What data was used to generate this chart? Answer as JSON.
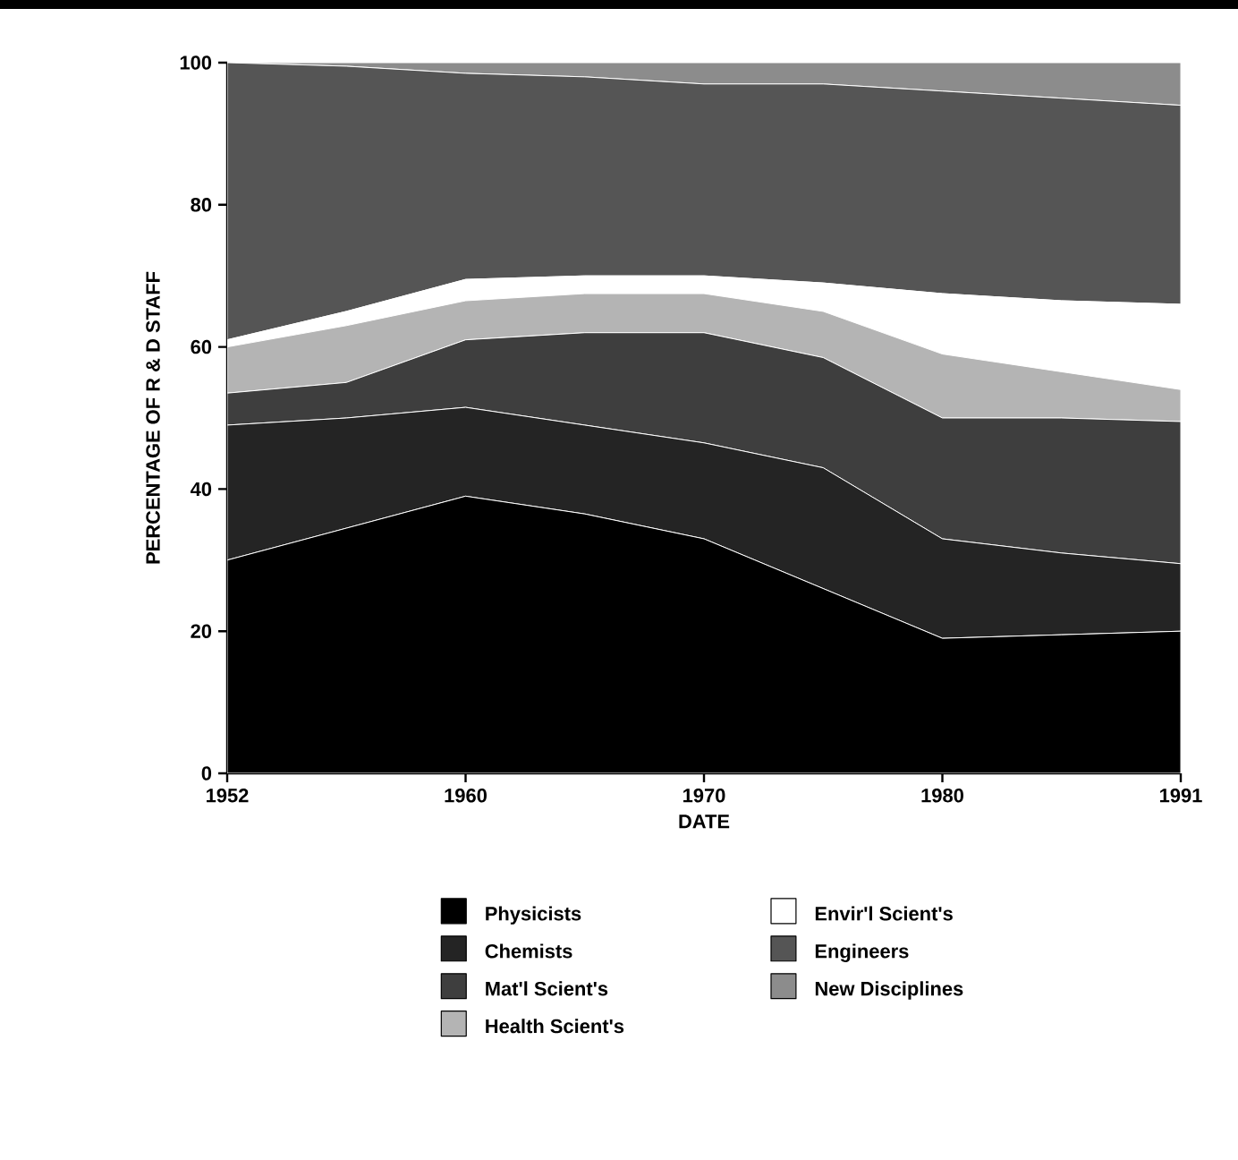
{
  "chart_data": {
    "type": "area",
    "stacked": true,
    "xlabel": "DATE",
    "ylabel": "PERCENTAGE OF R & D STAFF",
    "categories": [
      "1952",
      null,
      "1960",
      null,
      "1970",
      null,
      "1980",
      null,
      "1991"
    ],
    "ylim": [
      0,
      100
    ],
    "yticks": [
      0,
      20,
      40,
      60,
      80,
      100
    ],
    "grid": false,
    "legend": "bottom",
    "series": [
      {
        "name": "Physicists",
        "color": "#000000",
        "values": [
          30,
          34.5,
          39,
          36.5,
          33,
          26,
          19,
          19.5,
          20
        ]
      },
      {
        "name": "Chemists",
        "color": "#242424",
        "values": [
          19,
          15.5,
          12.5,
          12.5,
          13.5,
          17,
          14,
          11.5,
          9.5
        ]
      },
      {
        "name": "Mat'l Scient's",
        "color": "#3e3e3e",
        "values": [
          4.5,
          5,
          9.5,
          13,
          15.5,
          15.5,
          17,
          19,
          20
        ]
      },
      {
        "name": "Health Scient's",
        "color": "#b4b4b4",
        "values": [
          6.5,
          8,
          5.5,
          5.5,
          5.5,
          6.5,
          9,
          6.5,
          4.5
        ]
      },
      {
        "name": "Envir'l Scient's",
        "color": "#ffffff",
        "values": [
          1,
          2,
          3,
          2.5,
          2.5,
          4,
          8.5,
          10,
          12
        ]
      },
      {
        "name": "Engineers",
        "color": "#555555",
        "values": [
          39,
          34.5,
          29,
          28,
          27,
          28,
          28.5,
          28.5,
          28
        ]
      },
      {
        "name": "New Disciplines",
        "color": "#8c8c8c",
        "values": [
          0,
          0.5,
          1.5,
          2,
          3,
          3,
          4,
          5,
          6
        ]
      }
    ]
  }
}
